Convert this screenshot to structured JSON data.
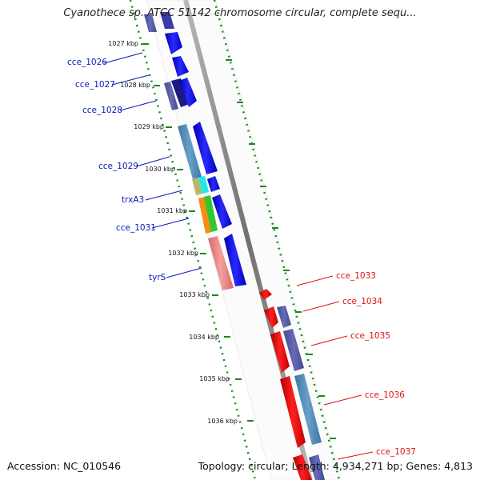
{
  "title": "Cyanothece sp. ATCC 51142 chromosome circular, complete sequ...",
  "footer": {
    "accession": "Accession: NC_010546",
    "summary": "Topology: circular; Length: 4,934,271 bp; Genes: 4,813"
  },
  "scale": {
    "ticks": [
      "1027 kbp",
      "1028 kbp",
      "1029 kbp",
      "1030 kbp",
      "1031 kbp",
      "1032 kbp",
      "1033 kbp",
      "1034 kbp",
      "1035 kbp",
      "1036 kbp"
    ]
  },
  "genes": {
    "left_labels": [
      "cce_1026",
      "cce_1027",
      "cce_1028",
      "cce_1029",
      "trxA3",
      "cce_1031",
      "tyrS"
    ],
    "right_labels": [
      "cce_1033",
      "cce_1034",
      "cce_1035",
      "cce_1036",
      "cce_1037"
    ]
  },
  "colors": {
    "forward_strand": "#1010e8",
    "reverse_strand": "#e81010",
    "left_label": "#0a18b8",
    "right_label": "#e01010",
    "backbone": "#909090",
    "ruler_dots": "#1a8a1a"
  }
}
